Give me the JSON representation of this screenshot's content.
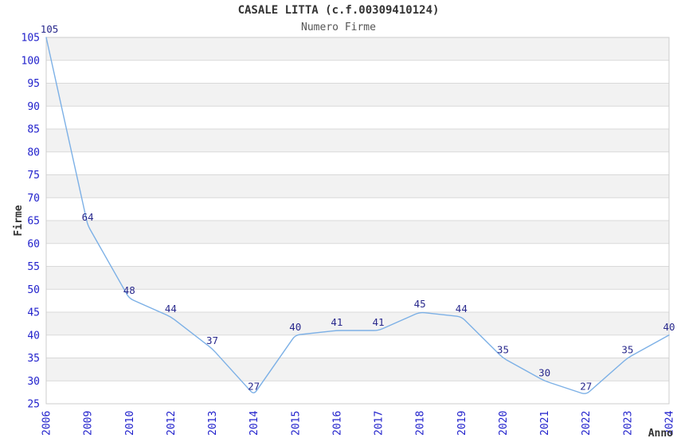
{
  "header": {
    "title": "CASALE LITTA (c.f.00309410124)",
    "subtitle": "Numero Firme"
  },
  "chart_data": {
    "type": "line",
    "title": "CASALE LITTA (c.f.00309410124)",
    "subtitle": "Numero Firme",
    "categories": [
      "2006",
      "2009",
      "2010",
      "2012",
      "2013",
      "2014",
      "2015",
      "2016",
      "2017",
      "2018",
      "2019",
      "2020",
      "2021",
      "2022",
      "2023",
      "2024"
    ],
    "values": [
      105,
      64,
      48,
      44,
      37,
      27,
      40,
      41,
      41,
      45,
      44,
      35,
      30,
      27,
      35,
      40
    ],
    "xlabel": "Anno",
    "ylabel": "Firme",
    "ylim": [
      25,
      105
    ],
    "ytick_step": 5,
    "grid": true,
    "banded_background": true,
    "legend": false,
    "point_labels_visible": true,
    "colors": {
      "line": "#7cb0e6",
      "point_label": "#28288c",
      "tick_label": "#2222cc",
      "axis_label": "#333333",
      "band_fill": "#f2f2f2",
      "gridline": "#d9d9d9",
      "plot_border": "#cccccc",
      "title": "#333333",
      "subtitle": "#555555"
    }
  }
}
